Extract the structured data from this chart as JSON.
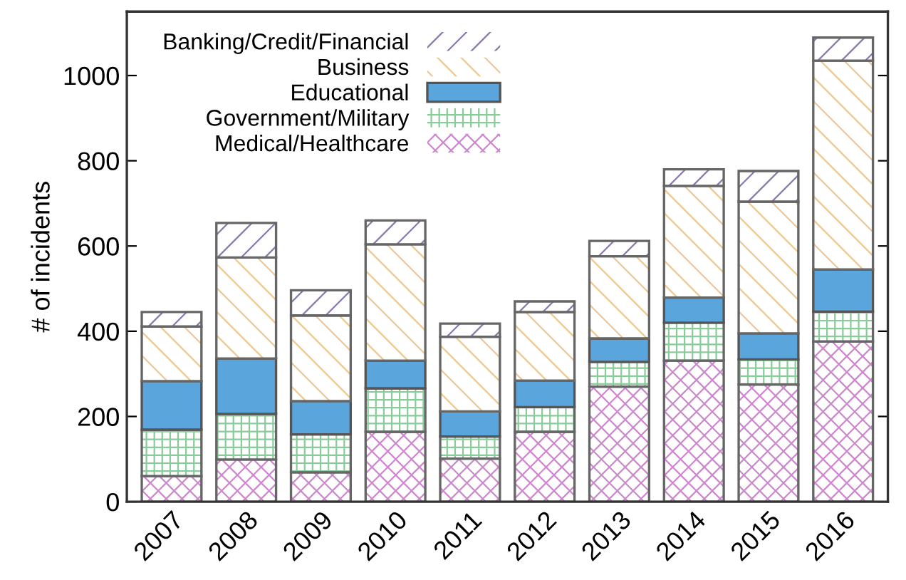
{
  "chart_data": {
    "type": "bar",
    "stacked": true,
    "ylabel": "# of incidents",
    "categories": [
      "2007",
      "2008",
      "2009",
      "2010",
      "2011",
      "2012",
      "2013",
      "2014",
      "2015",
      "2016"
    ],
    "series": [
      {
        "name": "Medical/Healthcare",
        "color": "#cc88cc",
        "values": [
          60,
          99,
          69,
          164,
          101,
          164,
          270,
          331,
          275,
          376
        ]
      },
      {
        "name": "Government/Military",
        "color": "#88cc99",
        "values": [
          109,
          107,
          89,
          102,
          52,
          58,
          58,
          89,
          59,
          70
        ]
      },
      {
        "name": "Educational",
        "color": "#5aa5dc",
        "values": [
          114,
          130,
          78,
          65,
          59,
          62,
          55,
          59,
          61,
          99
        ]
      },
      {
        "name": "Business",
        "color": "#eec890",
        "values": [
          128,
          237,
          201,
          273,
          175,
          161,
          193,
          262,
          309,
          490
        ]
      },
      {
        "name": "Banking/Credit/Financial",
        "color": "#8877aa",
        "values": [
          34,
          81,
          59,
          56,
          31,
          25,
          36,
          39,
          72,
          54
        ]
      }
    ],
    "ylim": [
      0,
      1150
    ],
    "yticks": [
      0,
      200,
      400,
      600,
      800,
      1000
    ],
    "grid": false,
    "legend": "top left"
  }
}
